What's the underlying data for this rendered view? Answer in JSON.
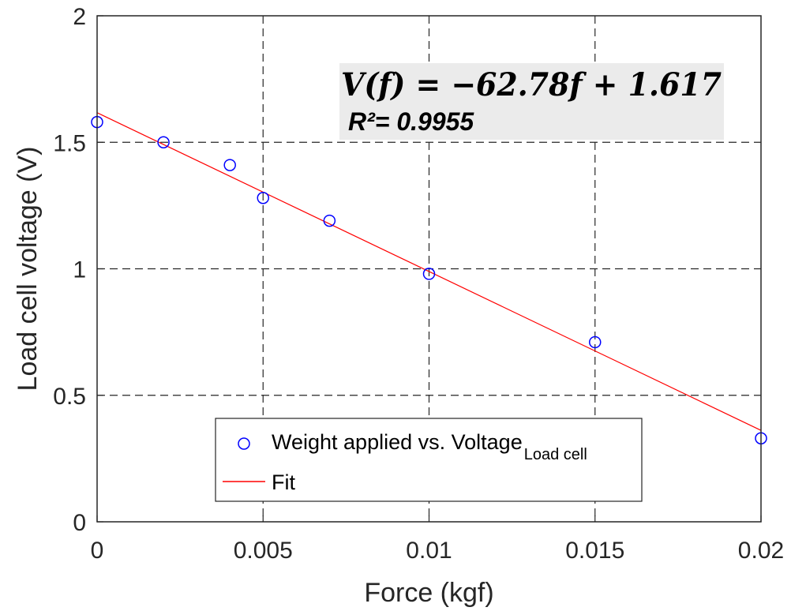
{
  "chart_data": {
    "type": "scatter",
    "xlabel": "Force (kgf)",
    "ylabel": "Load cell voltage (V)",
    "xlim": [
      0,
      0.02
    ],
    "ylim": [
      0,
      2
    ],
    "x_ticks": [
      0,
      0.005,
      0.01,
      0.015,
      0.02
    ],
    "x_tick_labels": [
      "0",
      "0.005",
      "0.01",
      "0.015",
      "0.02"
    ],
    "y_ticks": [
      0,
      0.5,
      1,
      1.5,
      2
    ],
    "y_tick_labels": [
      "0",
      "0.5",
      "1",
      "1.5",
      "2"
    ],
    "grid": true,
    "grid_style": "dashed",
    "series": [
      {
        "name": "Weight applied vs. Voltage",
        "name_subscript": "Load cell",
        "kind": "scatter",
        "marker": "open-circle",
        "color": "#0000ff",
        "x": [
          0,
          0.002,
          0.004,
          0.005,
          0.007,
          0.01,
          0.015,
          0.02
        ],
        "y": [
          1.58,
          1.5,
          1.41,
          1.28,
          1.19,
          0.98,
          0.71,
          0.33
        ]
      },
      {
        "name": "Fit",
        "kind": "line",
        "color": "#ff0000",
        "slope": -62.78,
        "intercept": 1.617,
        "x": [
          0,
          0.02
        ],
        "y": [
          1.617,
          0.3614
        ]
      }
    ],
    "legend_position": "bottom-center",
    "annotation": {
      "equation": "V(f) = −62.78f + 1.617",
      "r_squared": "R²= 0.9955",
      "background": "#ebebeb"
    }
  }
}
